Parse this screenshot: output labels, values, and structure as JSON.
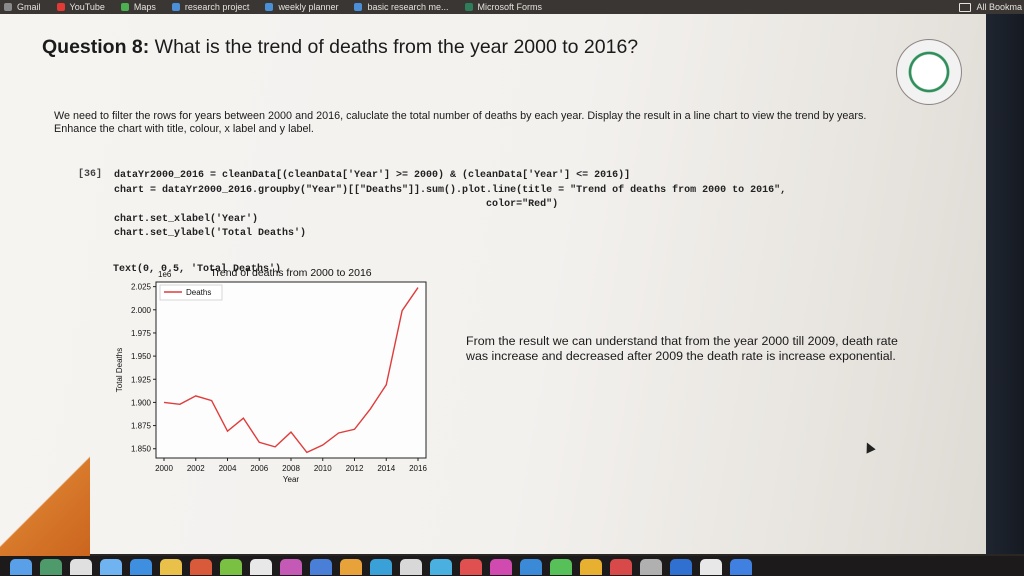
{
  "bookmarks": {
    "items": [
      {
        "label": "Gmail",
        "icon": "gmail-icon",
        "color": "#8a8a8a"
      },
      {
        "label": "YouTube",
        "icon": "youtube-icon",
        "color": "#e53935"
      },
      {
        "label": "Maps",
        "icon": "maps-icon",
        "color": "#4caf50"
      },
      {
        "label": "research project",
        "icon": "bookmark-icon",
        "color": "#4a90d9"
      },
      {
        "label": "weekly planner",
        "icon": "bookmark-icon",
        "color": "#4a90d9"
      },
      {
        "label": "basic research me...",
        "icon": "bookmark-icon",
        "color": "#4a90d9"
      },
      {
        "label": "Microsoft Forms",
        "icon": "forms-icon",
        "color": "#2e7d5b"
      }
    ],
    "all_bookmarks": "All Bookma"
  },
  "slide": {
    "title_bold": "Question 8:",
    "title_rest": " What is the trend of deaths from the year 2000 to 2016?",
    "description": "We need to filter the rows for years between 2000 and 2016, caluclate the total number of deaths by each year. Display the result in a line chart to view the trend by years. Enhance the chart with title, colour, x label and y label.",
    "prompt": "[36]",
    "code_line1": "dataYr2000_2016 = cleanData[(cleanData['Year'] >= 2000) & (cleanData['Year'] <= 2016)]",
    "code_line2": "chart = dataYr2000_2016.groupby(\"Year\")[[\"Deaths\"]].sum().plot.line(title = \"Trend of deaths from 2000 to 2016\",",
    "code_line3": "                                                              color=\"Red\")",
    "code_line4": "chart.set_xlabel('Year')",
    "code_line5": "chart.set_ylabel('Total Deaths')",
    "output": "Text(0, 0.5, 'Total Deaths')",
    "result": "From the result we can understand that from the year 2000 till 2009, death rate was increase and decreased after 2009 the death rate is increase exponential."
  },
  "chart_data": {
    "type": "line",
    "title": "Trend of deaths from 2000 to 2016",
    "xlabel": "Year",
    "ylabel": "Total Deaths",
    "scale_label": "1e6",
    "legend": "top-left",
    "color": "#e03c3c",
    "xlim": [
      2000,
      2016
    ],
    "ylim": [
      1.84,
      2.03
    ],
    "x_ticks": [
      "2000",
      "2002",
      "2004",
      "2006",
      "2008",
      "2010",
      "2012",
      "2014",
      "2016"
    ],
    "y_ticks": [
      "2.025",
      "2.000",
      "1.975",
      "1.950",
      "1.925",
      "1.900",
      "1.875",
      "1.850"
    ],
    "x": [
      2000,
      2001,
      2002,
      2003,
      2004,
      2005,
      2006,
      2007,
      2008,
      2009,
      2010,
      2011,
      2012,
      2013,
      2014,
      2015,
      2016
    ],
    "series": [
      {
        "name": "Deaths",
        "values": [
          1.9,
          1.898,
          1.907,
          1.902,
          1.869,
          1.883,
          1.857,
          1.852,
          1.868,
          1.846,
          1.854,
          1.867,
          1.871,
          1.893,
          1.919,
          1.999,
          2.024
        ]
      }
    ]
  }
}
